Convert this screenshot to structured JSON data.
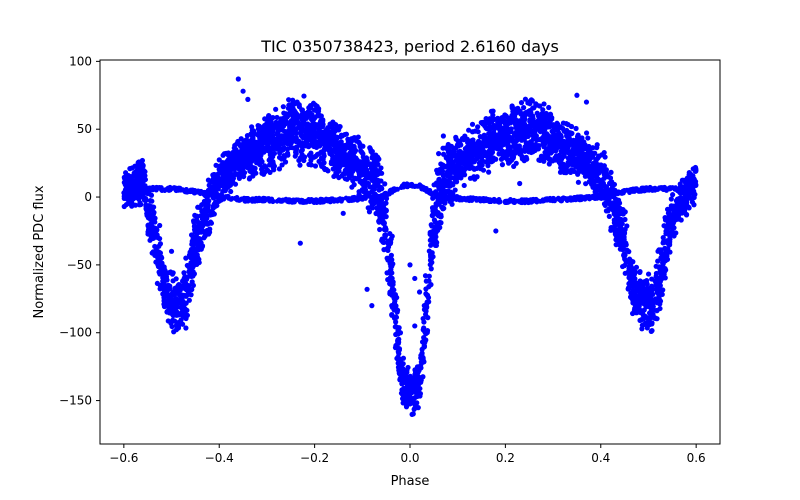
{
  "chart_data": {
    "type": "scatter",
    "title": "TIC 0350738423, period 2.6160 days",
    "xlabel": "Phase",
    "ylabel": "Normalized PDC flux",
    "xlim": [
      -0.65,
      0.65
    ],
    "ylim": [
      -182,
      101
    ],
    "xticks": [
      -0.6,
      -0.4,
      -0.2,
      0.0,
      0.2,
      0.4,
      0.6
    ],
    "xtick_labels": [
      "−0.6",
      "−0.4",
      "−0.2",
      "0.0",
      "0.2",
      "0.4",
      "0.6"
    ],
    "yticks": [
      -150,
      -100,
      -50,
      0,
      50,
      100
    ],
    "ytick_labels": [
      "−150",
      "−100",
      "−50",
      "0",
      "50",
      "100"
    ],
    "grid": false,
    "series": [
      {
        "name": "PDC flux",
        "color": "#0000ff",
        "marker": "circle",
        "envelope": [
          {
            "x": -0.6,
            "lo": -8,
            "hi": 20
          },
          {
            "x": -0.58,
            "lo": -10,
            "hi": 25
          },
          {
            "x": -0.56,
            "lo": -10,
            "hi": 35
          },
          {
            "x": -0.55,
            "lo": -30,
            "hi": 15
          },
          {
            "x": -0.53,
            "lo": -70,
            "hi": -10
          },
          {
            "x": -0.51,
            "lo": -95,
            "hi": -50
          },
          {
            "x": -0.49,
            "lo": -105,
            "hi": -55
          },
          {
            "x": -0.47,
            "lo": -100,
            "hi": -50
          },
          {
            "x": -0.45,
            "lo": -60,
            "hi": -5
          },
          {
            "x": -0.43,
            "lo": -40,
            "hi": 10
          },
          {
            "x": -0.4,
            "lo": -10,
            "hi": 30
          },
          {
            "x": -0.37,
            "lo": 5,
            "hi": 45
          },
          {
            "x": -0.33,
            "lo": 10,
            "hi": 55
          },
          {
            "x": -0.3,
            "lo": 15,
            "hi": 62
          },
          {
            "x": -0.26,
            "lo": 20,
            "hi": 72
          },
          {
            "x": -0.22,
            "lo": 22,
            "hi": 78
          },
          {
            "x": -0.19,
            "lo": 18,
            "hi": 70
          },
          {
            "x": -0.16,
            "lo": 12,
            "hi": 60
          },
          {
            "x": -0.13,
            "lo": 8,
            "hi": 50
          },
          {
            "x": -0.11,
            "lo": 0,
            "hi": 48
          },
          {
            "x": -0.09,
            "lo": -10,
            "hi": 42
          },
          {
            "x": -0.07,
            "lo": -20,
            "hi": 40
          },
          {
            "x": -0.05,
            "lo": -55,
            "hi": 10
          },
          {
            "x": -0.035,
            "lo": -110,
            "hi": -30
          },
          {
            "x": -0.02,
            "lo": -150,
            "hi": -110
          },
          {
            "x": 0.0,
            "lo": -165,
            "hi": -125
          },
          {
            "x": 0.02,
            "lo": -155,
            "hi": -120
          },
          {
            "x": 0.035,
            "lo": -115,
            "hi": -40
          },
          {
            "x": 0.05,
            "lo": -50,
            "hi": 15
          },
          {
            "x": 0.07,
            "lo": -15,
            "hi": 40
          },
          {
            "x": 0.09,
            "lo": -5,
            "hi": 45
          },
          {
            "x": 0.11,
            "lo": 5,
            "hi": 50
          },
          {
            "x": 0.14,
            "lo": 12,
            "hi": 58
          },
          {
            "x": 0.18,
            "lo": 18,
            "hi": 66
          },
          {
            "x": 0.22,
            "lo": 22,
            "hi": 72
          },
          {
            "x": 0.26,
            "lo": 24,
            "hi": 76
          },
          {
            "x": 0.29,
            "lo": 20,
            "hi": 70
          },
          {
            "x": 0.32,
            "lo": 15,
            "hi": 60
          },
          {
            "x": 0.35,
            "lo": 10,
            "hi": 55
          },
          {
            "x": 0.38,
            "lo": 2,
            "hi": 45
          },
          {
            "x": 0.41,
            "lo": -15,
            "hi": 35
          },
          {
            "x": 0.43,
            "lo": -35,
            "hi": 15
          },
          {
            "x": 0.45,
            "lo": -60,
            "hi": -5
          },
          {
            "x": 0.47,
            "lo": -95,
            "hi": -45
          },
          {
            "x": 0.49,
            "lo": -100,
            "hi": -55
          },
          {
            "x": 0.51,
            "lo": -105,
            "hi": -55
          },
          {
            "x": 0.53,
            "lo": -75,
            "hi": -15
          },
          {
            "x": 0.55,
            "lo": -40,
            "hi": 5
          },
          {
            "x": 0.57,
            "lo": -20,
            "hi": 15
          },
          {
            "x": 0.59,
            "lo": -10,
            "hi": 22
          },
          {
            "x": 0.6,
            "lo": -5,
            "hi": 25
          }
        ],
        "baseline": [
          {
            "x": -0.58,
            "y": 5
          },
          {
            "x": -0.54,
            "y": 6
          },
          {
            "x": -0.5,
            "y": 6
          },
          {
            "x": -0.45,
            "y": 4
          },
          {
            "x": -0.4,
            "y": 0
          },
          {
            "x": -0.35,
            "y": -2
          },
          {
            "x": -0.3,
            "y": -2
          },
          {
            "x": -0.25,
            "y": -3
          },
          {
            "x": -0.2,
            "y": -3
          },
          {
            "x": -0.15,
            "y": -2
          },
          {
            "x": -0.1,
            "y": -1
          },
          {
            "x": -0.06,
            "y": 0
          },
          {
            "x": -0.04,
            "y": 4
          },
          {
            "x": -0.02,
            "y": 8
          },
          {
            "x": 0.0,
            "y": 9
          },
          {
            "x": 0.02,
            "y": 8
          },
          {
            "x": 0.04,
            "y": 4
          },
          {
            "x": 0.06,
            "y": 0
          },
          {
            "x": 0.1,
            "y": -1
          },
          {
            "x": 0.15,
            "y": -2
          },
          {
            "x": 0.2,
            "y": -3
          },
          {
            "x": 0.25,
            "y": -3
          },
          {
            "x": 0.3,
            "y": -2
          },
          {
            "x": 0.35,
            "y": -1
          },
          {
            "x": 0.4,
            "y": 0
          },
          {
            "x": 0.45,
            "y": 4
          },
          {
            "x": 0.5,
            "y": 6
          },
          {
            "x": 0.55,
            "y": 6
          },
          {
            "x": 0.58,
            "y": 5
          }
        ],
        "outliers": [
          {
            "x": -0.36,
            "y": 87
          },
          {
            "x": -0.35,
            "y": 78
          },
          {
            "x": -0.34,
            "y": 72
          },
          {
            "x": -0.23,
            "y": -34
          },
          {
            "x": -0.09,
            "y": -68
          },
          {
            "x": -0.08,
            "y": -80
          },
          {
            "x": -0.02,
            "y": -100
          },
          {
            "x": 0.0,
            "y": -50
          },
          {
            "x": 0.01,
            "y": -60
          },
          {
            "x": 0.02,
            "y": -70
          },
          {
            "x": 0.03,
            "y": -80
          },
          {
            "x": 0.01,
            "y": -95
          },
          {
            "x": 0.06,
            "y": 32
          },
          {
            "x": 0.07,
            "y": 45
          },
          {
            "x": 0.18,
            "y": -25
          },
          {
            "x": 0.23,
            "y": 10
          },
          {
            "x": 0.37,
            "y": 70
          },
          {
            "x": 0.35,
            "y": 75
          },
          {
            "x": 0.52,
            "y": -40
          },
          {
            "x": -0.5,
            "y": -40
          },
          {
            "x": -0.47,
            "y": -45
          },
          {
            "x": -0.14,
            "y": -12
          }
        ]
      }
    ]
  }
}
